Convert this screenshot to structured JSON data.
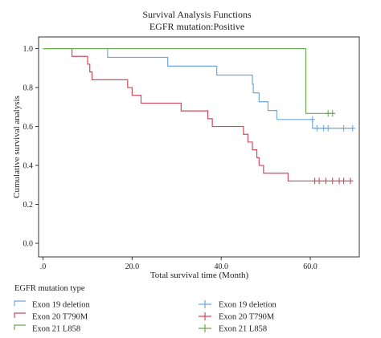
{
  "chart_data": {
    "type": "line",
    "subtype": "kaplan-meier step",
    "title": "Survival Analysis Functions",
    "subtitle": "EGFR mutation:Positive",
    "xlabel": "Total survival time (Month)",
    "ylabel": "Cumulative survival analysis",
    "xlim": [
      -1,
      71
    ],
    "ylim": [
      -0.07,
      1.06
    ],
    "x_ticks": [
      0,
      20,
      40,
      60
    ],
    "x_tick_labels": [
      ".0",
      "20.0",
      "40.0",
      "60.0"
    ],
    "y_ticks": [
      0,
      0.2,
      0.4,
      0.6,
      0.8,
      1.0
    ],
    "y_tick_labels": [
      "0.0",
      "0.2",
      "0.4",
      "0.6",
      "0.8",
      "1.0"
    ],
    "grid": false,
    "legend_title": "EGFR mutation type",
    "legend_position": "bottom",
    "legend_line_labels": [
      "Exon 19 deletion",
      "Exon 20 T790M",
      "Exon 21 L858"
    ],
    "legend_censor_labels": [
      "Exon 19 deletion",
      "Exon 20 T790M",
      "Exon 21 L858"
    ],
    "series": [
      {
        "name": "Exon 19 deletion",
        "color": "#6fa8dc",
        "steps": [
          [
            0,
            1.0
          ],
          [
            14.5,
            0.955
          ],
          [
            28,
            0.91
          ],
          [
            39,
            0.864
          ],
          [
            47,
            0.818
          ],
          [
            47.2,
            0.773
          ],
          [
            48.5,
            0.727
          ],
          [
            50.5,
            0.682
          ],
          [
            52.5,
            0.636
          ],
          [
            60.5,
            0.591
          ],
          [
            69.5,
            0.591
          ]
        ],
        "censored": [
          [
            60.5,
            0.636
          ],
          [
            61.5,
            0.591
          ],
          [
            63,
            0.591
          ],
          [
            64,
            0.591
          ],
          [
            67.5,
            0.591
          ],
          [
            69.5,
            0.591
          ]
        ]
      },
      {
        "name": "Exon 20 T790M",
        "color": "#d1495b",
        "steps": [
          [
            0,
            1.0
          ],
          [
            6.5,
            0.96
          ],
          [
            10,
            0.92
          ],
          [
            10.5,
            0.88
          ],
          [
            11,
            0.84
          ],
          [
            19,
            0.8
          ],
          [
            20,
            0.76
          ],
          [
            22,
            0.72
          ],
          [
            31,
            0.68
          ],
          [
            37,
            0.64
          ],
          [
            38,
            0.6
          ],
          [
            45,
            0.56
          ],
          [
            46,
            0.52
          ],
          [
            47,
            0.48
          ],
          [
            48,
            0.44
          ],
          [
            48.5,
            0.4
          ],
          [
            49.5,
            0.36
          ],
          [
            55,
            0.32
          ],
          [
            69.5,
            0.32
          ]
        ],
        "censored": [
          [
            61,
            0.32
          ],
          [
            62,
            0.32
          ],
          [
            63.5,
            0.32
          ],
          [
            65,
            0.32
          ],
          [
            66.5,
            0.32
          ],
          [
            67.5,
            0.32
          ],
          [
            69,
            0.32
          ]
        ]
      },
      {
        "name": "Exon 21 L858",
        "color": "#6aa84f",
        "steps": [
          [
            0,
            1.0
          ],
          [
            59,
            0.667
          ],
          [
            65.5,
            0.667
          ]
        ],
        "censored": [
          [
            64,
            0.667
          ],
          [
            65,
            0.667
          ]
        ]
      }
    ]
  }
}
